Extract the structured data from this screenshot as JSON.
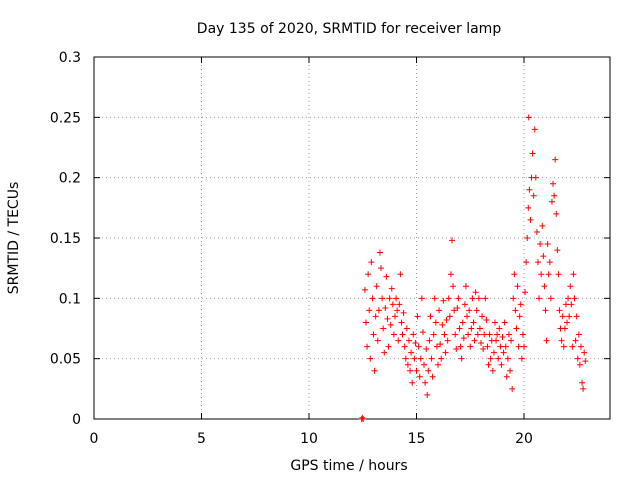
{
  "chart_data": {
    "type": "scatter",
    "title": "Day 135 of 2020, SRMTID for receiver lamp",
    "xlabel": "GPS time / hours",
    "ylabel": "SRMTID / TECUs",
    "xlim": [
      0,
      24
    ],
    "ylim": [
      0,
      0.3
    ],
    "x_ticks": [
      0,
      5,
      10,
      15,
      20
    ],
    "x_tick_labels": [
      "0",
      "5",
      "10",
      "15",
      "20"
    ],
    "y_ticks": [
      0,
      0.05,
      0.1,
      0.15,
      0.2,
      0.25,
      0.3
    ],
    "y_tick_labels": [
      "0",
      "0.05",
      "0.1",
      "0.15",
      "0.2",
      "0.25",
      "0.3"
    ],
    "grid": true,
    "marker": "+",
    "color": "#ff0000",
    "series": [
      {
        "name": "SRMTID",
        "points": [
          [
            12.45,
            0.0
          ],
          [
            12.48,
            0.001
          ],
          [
            12.52,
            0.0
          ],
          [
            12.6,
            0.107
          ],
          [
            12.65,
            0.08
          ],
          [
            12.7,
            0.06
          ],
          [
            12.75,
            0.12
          ],
          [
            12.8,
            0.09
          ],
          [
            12.85,
            0.05
          ],
          [
            12.9,
            0.13
          ],
          [
            12.95,
            0.1
          ],
          [
            13.0,
            0.07
          ],
          [
            13.05,
            0.04
          ],
          [
            13.1,
            0.085
          ],
          [
            13.15,
            0.11
          ],
          [
            13.2,
            0.065
          ],
          [
            13.25,
            0.09
          ],
          [
            13.3,
            0.138
          ],
          [
            13.35,
            0.125
          ],
          [
            13.4,
            0.1
          ],
          [
            13.45,
            0.075
          ],
          [
            13.5,
            0.055
          ],
          [
            13.55,
            0.092
          ],
          [
            13.6,
            0.118
          ],
          [
            13.65,
            0.083
          ],
          [
            13.7,
            0.06
          ],
          [
            13.75,
            0.1
          ],
          [
            13.8,
            0.078
          ],
          [
            13.85,
            0.108
          ],
          [
            13.9,
            0.095
          ],
          [
            13.95,
            0.07
          ],
          [
            14.0,
            0.085
          ],
          [
            14.05,
            0.1
          ],
          [
            14.1,
            0.09
          ],
          [
            14.15,
            0.065
          ],
          [
            14.2,
            0.095
          ],
          [
            14.25,
            0.12
          ],
          [
            14.3,
            0.08
          ],
          [
            14.35,
            0.07
          ],
          [
            14.4,
            0.088
          ],
          [
            14.45,
            0.06
          ],
          [
            14.5,
            0.05
          ],
          [
            14.55,
            0.075
          ],
          [
            14.6,
            0.045
          ],
          [
            14.65,
            0.065
          ],
          [
            14.7,
            0.04
          ],
          [
            14.75,
            0.055
          ],
          [
            14.8,
            0.03
          ],
          [
            14.85,
            0.07
          ],
          [
            14.9,
            0.05
          ],
          [
            14.95,
            0.063
          ],
          [
            15.0,
            0.04
          ],
          [
            15.05,
            0.085
          ],
          [
            15.1,
            0.06
          ],
          [
            15.15,
            0.035
          ],
          [
            15.2,
            0.05
          ],
          [
            15.25,
            0.1
          ],
          [
            15.3,
            0.072
          ],
          [
            15.35,
            0.045
          ],
          [
            15.4,
            0.03
          ],
          [
            15.45,
            0.058
          ],
          [
            15.5,
            0.02
          ],
          [
            15.55,
            0.04
          ],
          [
            15.6,
            0.065
          ],
          [
            15.65,
            0.085
          ],
          [
            15.7,
            0.05
          ],
          [
            15.75,
            0.035
          ],
          [
            15.8,
            0.07
          ],
          [
            15.85,
            0.1
          ],
          [
            15.9,
            0.08
          ],
          [
            15.95,
            0.06
          ],
          [
            16.0,
            0.045
          ],
          [
            16.05,
            0.09
          ],
          [
            16.1,
            0.062
          ],
          [
            16.15,
            0.05
          ],
          [
            16.2,
            0.078
          ],
          [
            16.25,
            0.098
          ],
          [
            16.3,
            0.07
          ],
          [
            16.35,
            0.055
          ],
          [
            16.4,
            0.082
          ],
          [
            16.45,
            0.065
          ],
          [
            16.5,
            0.1
          ],
          [
            16.55,
            0.085
          ],
          [
            16.6,
            0.12
          ],
          [
            16.65,
            0.148
          ],
          [
            16.7,
            0.11
          ],
          [
            16.75,
            0.09
          ],
          [
            16.8,
            0.07
          ],
          [
            16.85,
            0.058
          ],
          [
            16.9,
            0.092
          ],
          [
            16.95,
            0.1
          ],
          [
            17.0,
            0.075
          ],
          [
            17.05,
            0.06
          ],
          [
            17.1,
            0.05
          ],
          [
            17.15,
            0.08
          ],
          [
            17.2,
            0.067
          ],
          [
            17.25,
            0.095
          ],
          [
            17.3,
            0.11
          ],
          [
            17.35,
            0.085
          ],
          [
            17.4,
            0.07
          ],
          [
            17.45,
            0.09
          ],
          [
            17.5,
            0.06
          ],
          [
            17.55,
            0.075
          ],
          [
            17.6,
            0.1
          ],
          [
            17.65,
            0.08
          ],
          [
            17.7,
            0.065
          ],
          [
            17.75,
            0.105
          ],
          [
            17.8,
            0.09
          ],
          [
            17.85,
            0.07
          ],
          [
            17.9,
            0.1
          ],
          [
            17.95,
            0.075
          ],
          [
            18.0,
            0.063
          ],
          [
            18.05,
            0.085
          ],
          [
            18.1,
            0.058
          ],
          [
            18.15,
            0.07
          ],
          [
            18.2,
            0.1
          ],
          [
            18.25,
            0.082
          ],
          [
            18.3,
            0.06
          ],
          [
            18.35,
            0.045
          ],
          [
            18.4,
            0.07
          ],
          [
            18.45,
            0.05
          ],
          [
            18.5,
            0.065
          ],
          [
            18.55,
            0.04
          ],
          [
            18.6,
            0.055
          ],
          [
            18.65,
            0.08
          ],
          [
            18.7,
            0.065
          ],
          [
            18.75,
            0.07
          ],
          [
            18.8,
            0.05
          ],
          [
            18.85,
            0.075
          ],
          [
            18.9,
            0.06
          ],
          [
            18.95,
            0.045
          ],
          [
            19.0,
            0.068
          ],
          [
            19.05,
            0.055
          ],
          [
            19.1,
            0.08
          ],
          [
            19.15,
            0.06
          ],
          [
            19.2,
            0.035
          ],
          [
            19.25,
            0.05
          ],
          [
            19.3,
            0.07
          ],
          [
            19.35,
            0.04
          ],
          [
            19.4,
            0.065
          ],
          [
            19.45,
            0.025
          ],
          [
            19.5,
            0.1
          ],
          [
            19.55,
            0.12
          ],
          [
            19.6,
            0.09
          ],
          [
            19.65,
            0.075
          ],
          [
            19.7,
            0.11
          ],
          [
            19.75,
            0.06
          ],
          [
            19.8,
            0.085
          ],
          [
            19.85,
            0.095
          ],
          [
            19.9,
            0.05
          ],
          [
            19.95,
            0.07
          ],
          [
            20.0,
            0.06
          ],
          [
            20.05,
            0.105
          ],
          [
            20.1,
            0.13
          ],
          [
            20.15,
            0.15
          ],
          [
            20.2,
            0.175
          ],
          [
            20.22,
            0.25
          ],
          [
            20.25,
            0.19
          ],
          [
            20.3,
            0.165
          ],
          [
            20.35,
            0.2
          ],
          [
            20.4,
            0.22
          ],
          [
            20.45,
            0.185
          ],
          [
            20.5,
            0.24
          ],
          [
            20.55,
            0.2
          ],
          [
            20.6,
            0.155
          ],
          [
            20.65,
            0.13
          ],
          [
            20.7,
            0.1
          ],
          [
            20.75,
            0.145
          ],
          [
            20.8,
            0.12
          ],
          [
            20.85,
            0.16
          ],
          [
            20.9,
            0.135
          ],
          [
            20.95,
            0.11
          ],
          [
            21.0,
            0.09
          ],
          [
            21.05,
            0.065
          ],
          [
            21.1,
            0.145
          ],
          [
            21.15,
            0.12
          ],
          [
            21.2,
            0.13
          ],
          [
            21.25,
            0.1
          ],
          [
            21.3,
            0.18
          ],
          [
            21.35,
            0.195
          ],
          [
            21.4,
            0.185
          ],
          [
            21.45,
            0.215
          ],
          [
            21.5,
            0.17
          ],
          [
            21.55,
            0.14
          ],
          [
            21.6,
            0.12
          ],
          [
            21.65,
            0.09
          ],
          [
            21.7,
            0.075
          ],
          [
            21.75,
            0.065
          ],
          [
            21.8,
            0.085
          ],
          [
            21.85,
            0.06
          ],
          [
            21.9,
            0.075
          ],
          [
            21.95,
            0.095
          ],
          [
            22.0,
            0.08
          ],
          [
            22.05,
            0.1
          ],
          [
            22.1,
            0.085
          ],
          [
            22.15,
            0.11
          ],
          [
            22.2,
            0.095
          ],
          [
            22.25,
            0.06
          ],
          [
            22.3,
            0.12
          ],
          [
            22.35,
            0.1
          ],
          [
            22.4,
            0.065
          ],
          [
            22.45,
            0.085
          ],
          [
            22.5,
            0.05
          ],
          [
            22.55,
            0.07
          ],
          [
            22.6,
            0.045
          ],
          [
            22.65,
            0.06
          ],
          [
            22.7,
            0.03
          ],
          [
            22.75,
            0.025
          ],
          [
            22.8,
            0.055
          ],
          [
            22.85,
            0.048
          ]
        ]
      }
    ]
  }
}
